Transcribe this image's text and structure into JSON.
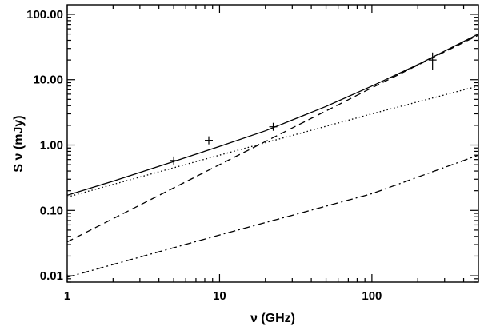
{
  "chart_data": {
    "type": "line",
    "title": "",
    "xlabel": "ν (GHz)",
    "ylabel": "S ν (mJy)",
    "xscale": "log",
    "yscale": "log",
    "xlim": [
      1,
      500
    ],
    "ylim": [
      0.008,
      140
    ],
    "grid": false,
    "x_ticks": [
      1,
      10,
      100
    ],
    "x_tick_labels": [
      "1",
      "10",
      "100"
    ],
    "y_ticks": [
      0.01,
      0.1,
      1,
      10,
      100
    ],
    "y_tick_labels": [
      "0.01",
      "0.10",
      "1.00",
      "10.00",
      "100.00"
    ],
    "series": [
      {
        "style": "solid",
        "x": [
          1,
          2,
          5,
          10,
          20,
          50,
          100,
          200,
          500
        ],
        "y": [
          0.17,
          0.28,
          0.56,
          0.95,
          1.65,
          3.9,
          8.0,
          17.0,
          50.0
        ]
      },
      {
        "style": "dotted",
        "x": [
          1,
          10,
          100,
          500
        ],
        "y": [
          0.16,
          0.7,
          3.0,
          8.0
        ]
      },
      {
        "style": "dashed",
        "x": [
          1,
          10,
          100,
          500
        ],
        "y": [
          0.033,
          0.5,
          7.5,
          48.0
        ]
      },
      {
        "style": "dash-dot",
        "x": [
          1,
          10,
          100,
          500
        ],
        "y": [
          0.0095,
          0.042,
          0.18,
          0.7
        ]
      }
    ],
    "points": [
      {
        "x": 5.0,
        "y": 0.58,
        "yerr": 0.05
      },
      {
        "x": 8.5,
        "y": 1.18,
        "yerr": 0.08
      },
      {
        "x": 22.5,
        "y": 1.9,
        "yerr": 0.1
      },
      {
        "x": 250,
        "y": 20.0,
        "yerr": 6.0
      }
    ]
  }
}
